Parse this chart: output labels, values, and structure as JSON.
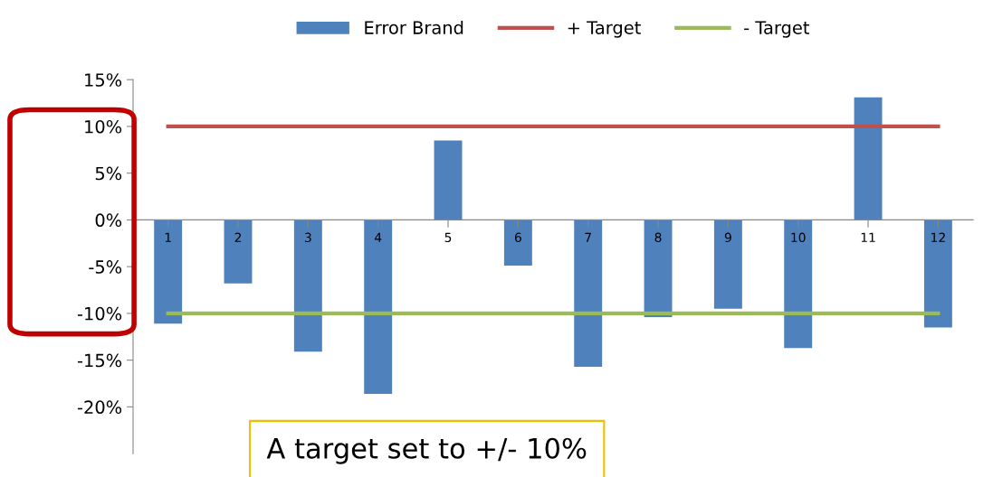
{
  "chart_data": {
    "type": "bar",
    "categories": [
      "1",
      "2",
      "3",
      "4",
      "5",
      "6",
      "7",
      "8",
      "9",
      "10",
      "11",
      "12"
    ],
    "series": [
      {
        "name": "Error Brand",
        "color": "#4f81bd",
        "values": [
          -11.1,
          -6.8,
          -14.1,
          -18.6,
          8.5,
          -4.9,
          -15.7,
          -10.4,
          -9.5,
          -13.7,
          13.1,
          -11.5
        ]
      },
      {
        "name": "+ Target",
        "type": "line",
        "color": "#c0504d",
        "values": [
          10,
          10,
          10,
          10,
          10,
          10,
          10,
          10,
          10,
          10,
          10,
          10
        ]
      },
      {
        "name": "- Target",
        "type": "line",
        "color": "#9bbb59",
        "values": [
          -10,
          -10,
          -10,
          -10,
          -10,
          -10,
          -10,
          -10,
          -10,
          -10,
          -10,
          -10
        ]
      }
    ],
    "ylim": [
      -25,
      15
    ],
    "yticks": [
      {
        "value": -20,
        "label": "-20%"
      },
      {
        "value": -15,
        "label": "-15%"
      },
      {
        "value": -10,
        "label": "-10%"
      },
      {
        "value": -5,
        "label": "-5%"
      },
      {
        "value": 0,
        "label": "0%"
      },
      {
        "value": 5,
        "label": "5%"
      },
      {
        "value": 10,
        "label": "10%"
      },
      {
        "value": 15,
        "label": "15%"
      }
    ],
    "legend": "top",
    "grid": false,
    "marker": "none",
    "annotations": [
      "A target set to +/- 10%"
    ]
  }
}
